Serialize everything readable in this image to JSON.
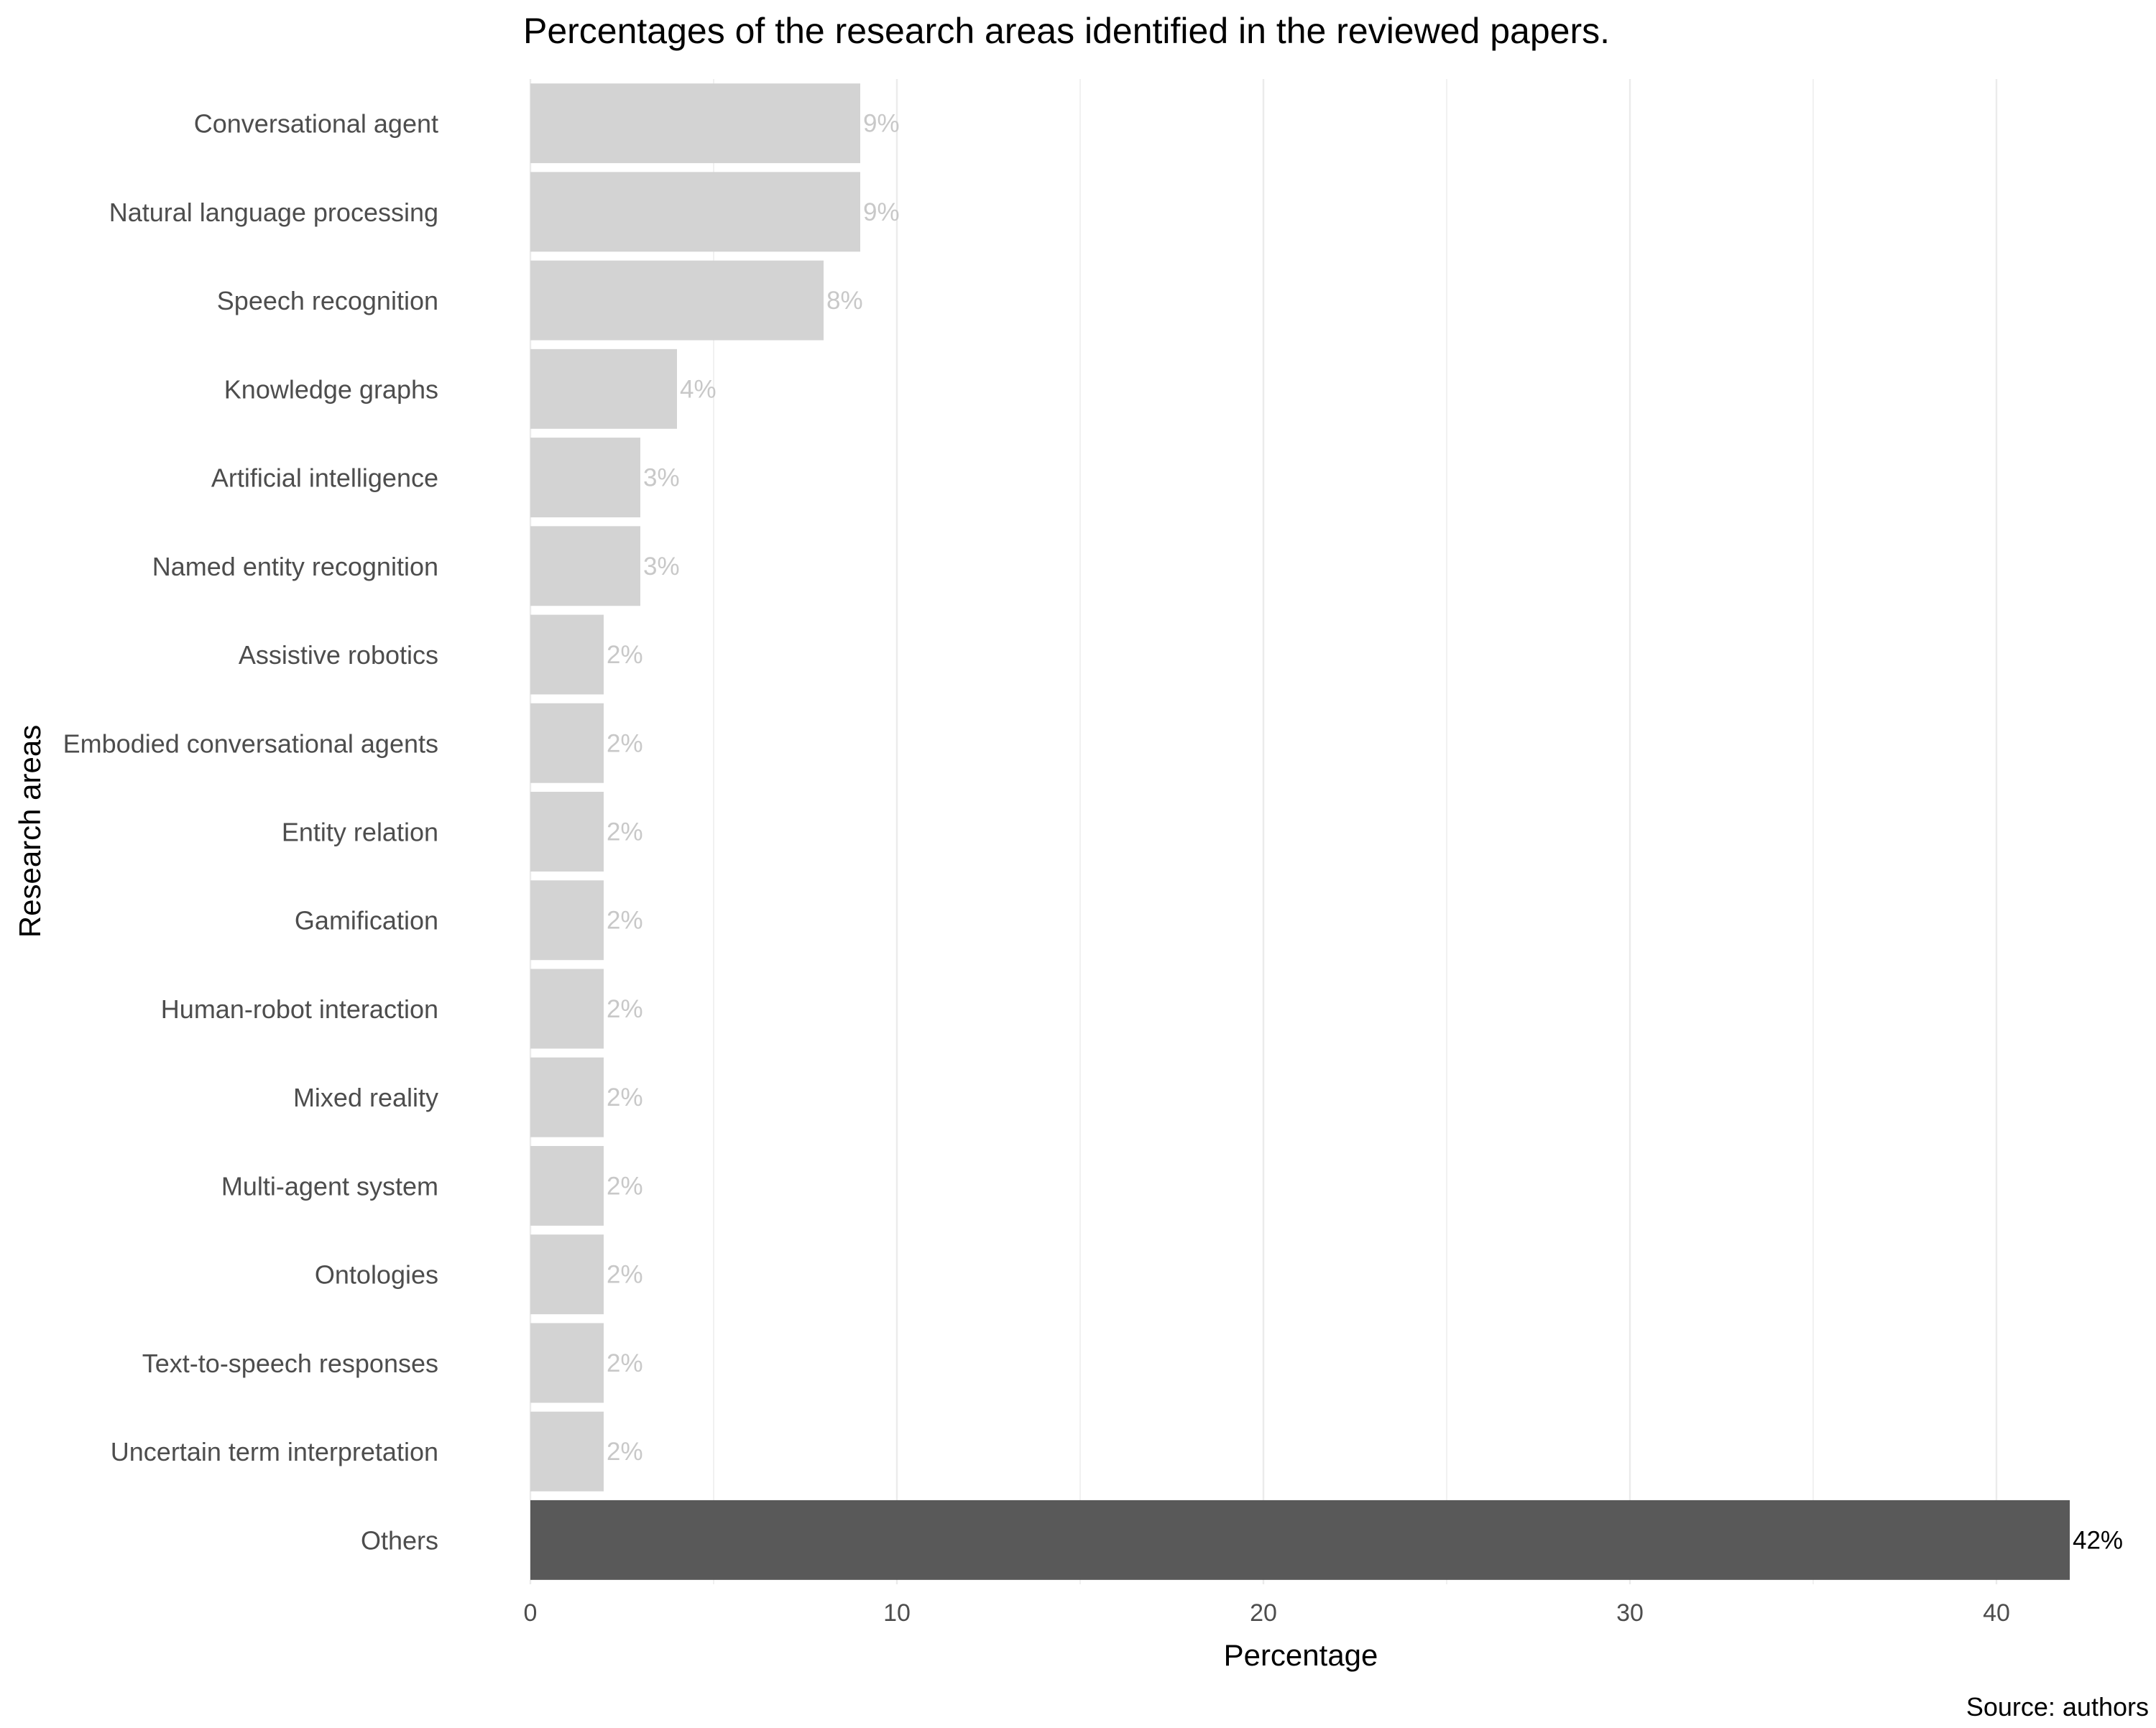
{
  "chart_data": {
    "type": "bar",
    "orientation": "horizontal",
    "title": "Percentages of the research areas identified in the reviewed papers.",
    "xlabel": "Percentage",
    "ylabel": "Research areas",
    "caption": "Source: authors",
    "xlim": [
      0,
      42
    ],
    "xticks": [
      "0",
      "10",
      "20",
      "30",
      "40"
    ],
    "grid": true,
    "legend": "none",
    "categories": [
      "Conversational agent",
      "Natural language processing",
      "Speech recognition",
      "Knowledge graphs",
      "Artificial intelligence",
      "Named entity recognition",
      "Assistive robotics",
      "Embodied conversational agents",
      "Entity relation",
      "Gamification",
      "Human-robot interaction",
      "Mixed reality",
      "Multi-agent system",
      "Ontologies",
      "Text-to-speech responses",
      "Uncertain term interpretation",
      "Others"
    ],
    "values": [
      9,
      9,
      8,
      4,
      3,
      3,
      2,
      2,
      2,
      2,
      2,
      2,
      2,
      2,
      2,
      2,
      42
    ],
    "value_labels": [
      "9%",
      "9%",
      "8%",
      "4%",
      "3%",
      "3%",
      "2%",
      "2%",
      "2%",
      "2%",
      "2%",
      "2%",
      "2%",
      "2%",
      "2%",
      "2%",
      "42%"
    ],
    "highlighted_category": "Others",
    "colors": {
      "bar": "#d3d3d3",
      "highlight_bar": "#595959",
      "bar_label": "#c8c8c8",
      "highlight_label": "#000000",
      "grid": "#ebebeb",
      "axis_text": "#4d4d4d",
      "title_text": "#000000"
    }
  }
}
